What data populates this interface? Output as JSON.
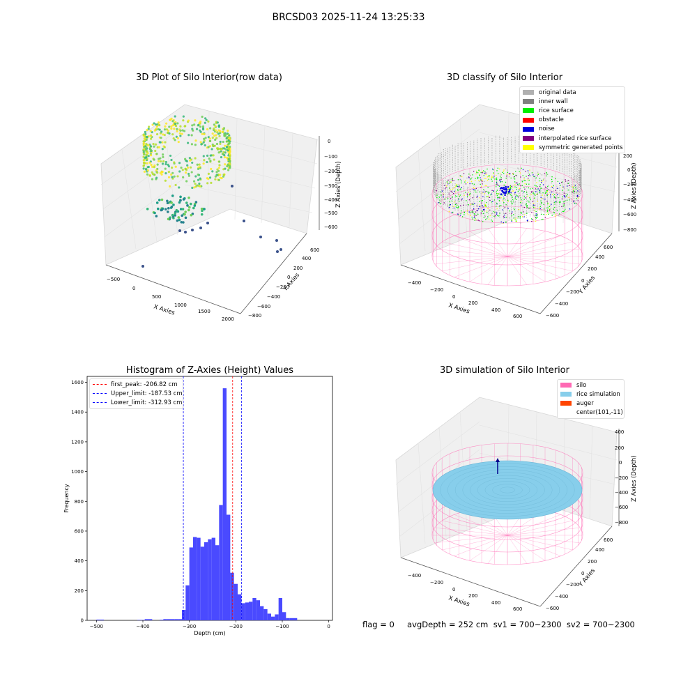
{
  "page": {
    "suptitle": "BRCSD03 2025-11-24 13:25:33",
    "footer": "flag = 0     avgDepth = 252 cm  sv1 = 700~2300  sv2 = 700~2300"
  },
  "colors": {
    "original_data": "#b0b0b0",
    "inner_wall": "#808080",
    "rice_surface": "#00ee00",
    "obstacle": "#ff0000",
    "noise": "#0000dd",
    "interpolated_rice_surface": "#800080",
    "symmetric_generated_points": "#ffff00",
    "silo": "#ff69b4",
    "rice_simulation": "#87ceeb",
    "auger": "#ff4500",
    "histogram_bars": "#4a4aff",
    "first_peak_line": "#ff0000",
    "limit_lines": "#0000ff"
  },
  "chart_data": [
    {
      "type": "scatter",
      "projection": "3d",
      "title": "3D Plot of Silo Interior(row data)",
      "xlabel": "X Axies",
      "ylabel": "Y Axies",
      "zlabel": "Z Axies (Depth)",
      "x_ticks": [
        -500,
        0,
        500,
        1000,
        1500,
        2000
      ],
      "y_ticks": [
        -800,
        -600,
        -400,
        -200,
        0,
        200,
        400,
        600
      ],
      "z_ticks": [
        -600,
        -500,
        -400,
        -300,
        -200,
        -100,
        0
      ],
      "colormap": "viridis",
      "grid": true
    },
    {
      "type": "scatter",
      "projection": "3d",
      "title": "3D classify of Silo Interior",
      "xlabel": "X Axies",
      "ylabel": "Y Axies",
      "zlabel": "Z Axies (Depth)",
      "x_ticks": [
        -400,
        -200,
        0,
        200,
        400,
        600
      ],
      "y_ticks": [
        -600,
        -400,
        -200,
        0,
        200,
        400,
        600
      ],
      "z_ticks": [
        -800,
        -600,
        -400,
        -200,
        0,
        200,
        400
      ],
      "legend": [
        "original data",
        "inner wall",
        "rice surface",
        "obstacle",
        "noise",
        "interpolated rice surface",
        "symmetric generated points"
      ],
      "legend_loc": "upper right",
      "grid": true
    },
    {
      "type": "bar",
      "title": "Histogram of Z-Axies (Height) Values",
      "xlabel": "Depth (cm)",
      "ylabel": "Frequency",
      "xlim": [
        -520,
        8
      ],
      "ylim": [
        0,
        1640
      ],
      "x_ticks": [
        -500,
        -400,
        -300,
        -200,
        -100,
        0
      ],
      "y_ticks": [
        0,
        200,
        400,
        600,
        800,
        1000,
        1200,
        1400,
        1600
      ],
      "bin_width": 8,
      "bins": [
        [
          -500,
          5
        ],
        [
          -492,
          5
        ],
        [
          -412,
          3
        ],
        [
          -404,
          3
        ],
        [
          -396,
          8
        ],
        [
          -388,
          8
        ],
        [
          -364,
          4
        ],
        [
          -356,
          8
        ],
        [
          -348,
          8
        ],
        [
          -340,
          8
        ],
        [
          -332,
          8
        ],
        [
          -324,
          8
        ],
        [
          -316,
          70
        ],
        [
          -308,
          235
        ],
        [
          -300,
          490
        ],
        [
          -292,
          560
        ],
        [
          -284,
          555
        ],
        [
          -276,
          495
        ],
        [
          -268,
          525
        ],
        [
          -260,
          545
        ],
        [
          -252,
          555
        ],
        [
          -244,
          505
        ],
        [
          -236,
          775
        ],
        [
          -228,
          1560
        ],
        [
          -220,
          710
        ],
        [
          -212,
          320
        ],
        [
          -204,
          245
        ],
        [
          -196,
          175
        ],
        [
          -188,
          115
        ],
        [
          -180,
          120
        ],
        [
          -172,
          125
        ],
        [
          -164,
          150
        ],
        [
          -156,
          135
        ],
        [
          -148,
          95
        ],
        [
          -140,
          75
        ],
        [
          -132,
          45
        ],
        [
          -124,
          25
        ],
        [
          -116,
          40
        ],
        [
          -108,
          150
        ],
        [
          -100,
          55
        ],
        [
          -92,
          15
        ],
        [
          -84,
          15
        ],
        [
          -76,
          15
        ]
      ],
      "lines": [
        {
          "label": "first_peak: -206.82 cm",
          "x": -206.82,
          "color": "#ff0000"
        },
        {
          "label": "Upper_limit: -187.53 cm",
          "x": -187.53,
          "color": "#0000ff"
        },
        {
          "label": "Lower_limit: -312.93 cm",
          "x": -312.93,
          "color": "#0000ff"
        }
      ],
      "legend_loc": "upper left"
    },
    {
      "type": "surface",
      "projection": "3d",
      "title": "3D simulation of Silo Interior",
      "xlabel": "X Axies",
      "ylabel": "Y Axies",
      "zlabel": "Z Axies (Depth)",
      "x_ticks": [
        -400,
        -200,
        0,
        200,
        400,
        600
      ],
      "y_ticks": [
        -600,
        -400,
        -200,
        0,
        200,
        400,
        600
      ],
      "z_ticks": [
        -800,
        -600,
        -400,
        -200,
        0,
        200,
        400
      ],
      "legend": [
        "silo",
        "rice simulation",
        "auger",
        "center(101,-11)"
      ],
      "legend_loc": "upper right",
      "grid": true
    }
  ]
}
